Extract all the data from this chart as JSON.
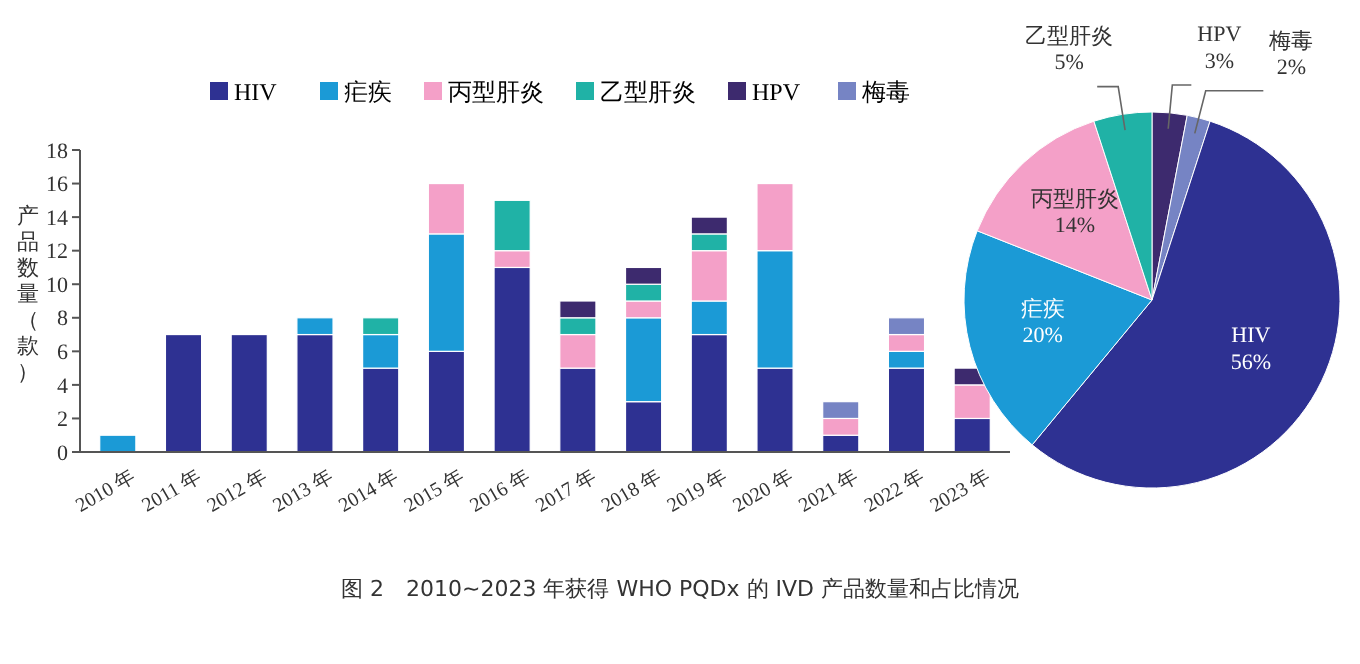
{
  "chart_data": [
    {
      "type": "bar",
      "stacked": true,
      "ylabel": "产品数量（款）",
      "categories": [
        "2010 年",
        "2011 年",
        "2012 年",
        "2013 年",
        "2014 年",
        "2015 年",
        "2016 年",
        "2017 年",
        "2018 年",
        "2019 年",
        "2020 年",
        "2021 年",
        "2022 年",
        "2023 年"
      ],
      "series": [
        {
          "name": "HIV",
          "color": "#2e3192",
          "values": [
            0,
            7,
            7,
            7,
            5,
            6,
            11,
            5,
            3,
            7,
            5,
            1,
            5,
            2
          ]
        },
        {
          "name": "疟疾",
          "color": "#1b9ad6",
          "values": [
            1,
            0,
            0,
            1,
            2,
            7,
            0,
            0,
            5,
            2,
            7,
            0,
            1,
            0
          ]
        },
        {
          "name": "丙型肝炎",
          "color": "#f4a0c8",
          "values": [
            0,
            0,
            0,
            0,
            0,
            3,
            1,
            2,
            1,
            3,
            4,
            1,
            1,
            2
          ]
        },
        {
          "name": "乙型肝炎",
          "color": "#20b2a6",
          "values": [
            0,
            0,
            0,
            0,
            1,
            0,
            3,
            1,
            1,
            1,
            0,
            0,
            0,
            0
          ]
        },
        {
          "name": "HPV",
          "color": "#3d2a6e",
          "values": [
            0,
            0,
            0,
            0,
            0,
            0,
            0,
            1,
            1,
            1,
            0,
            0,
            0,
            1
          ]
        },
        {
          "name": "梅毒",
          "color": "#7684c4",
          "values": [
            0,
            0,
            0,
            0,
            0,
            0,
            0,
            0,
            0,
            0,
            0,
            1,
            1,
            0
          ]
        }
      ],
      "ylim": [
        0,
        18
      ],
      "yticks": [
        0,
        2,
        4,
        6,
        8,
        10,
        12,
        14,
        16,
        18
      ],
      "legend": "top",
      "grid": false,
      "annotations": [
        "图 2　2010~2023 年获得 WHO PQDx 的 IVD 产品数量和占比情况"
      ]
    },
    {
      "type": "pie",
      "categories": [
        "HPV",
        "梅毒",
        "HIV",
        "疟疾",
        "丙型肝炎",
        "乙型肝炎"
      ],
      "values": [
        3,
        2,
        56,
        20,
        14,
        5
      ],
      "colors": [
        "#3d2a6e",
        "#7684c4",
        "#2e3192",
        "#1b9ad6",
        "#f4a0c8",
        "#20b2a6"
      ],
      "value_labels": [
        "3%",
        "2%",
        "56%",
        "20%",
        "14%",
        "5%"
      ],
      "legend": false
    }
  ]
}
